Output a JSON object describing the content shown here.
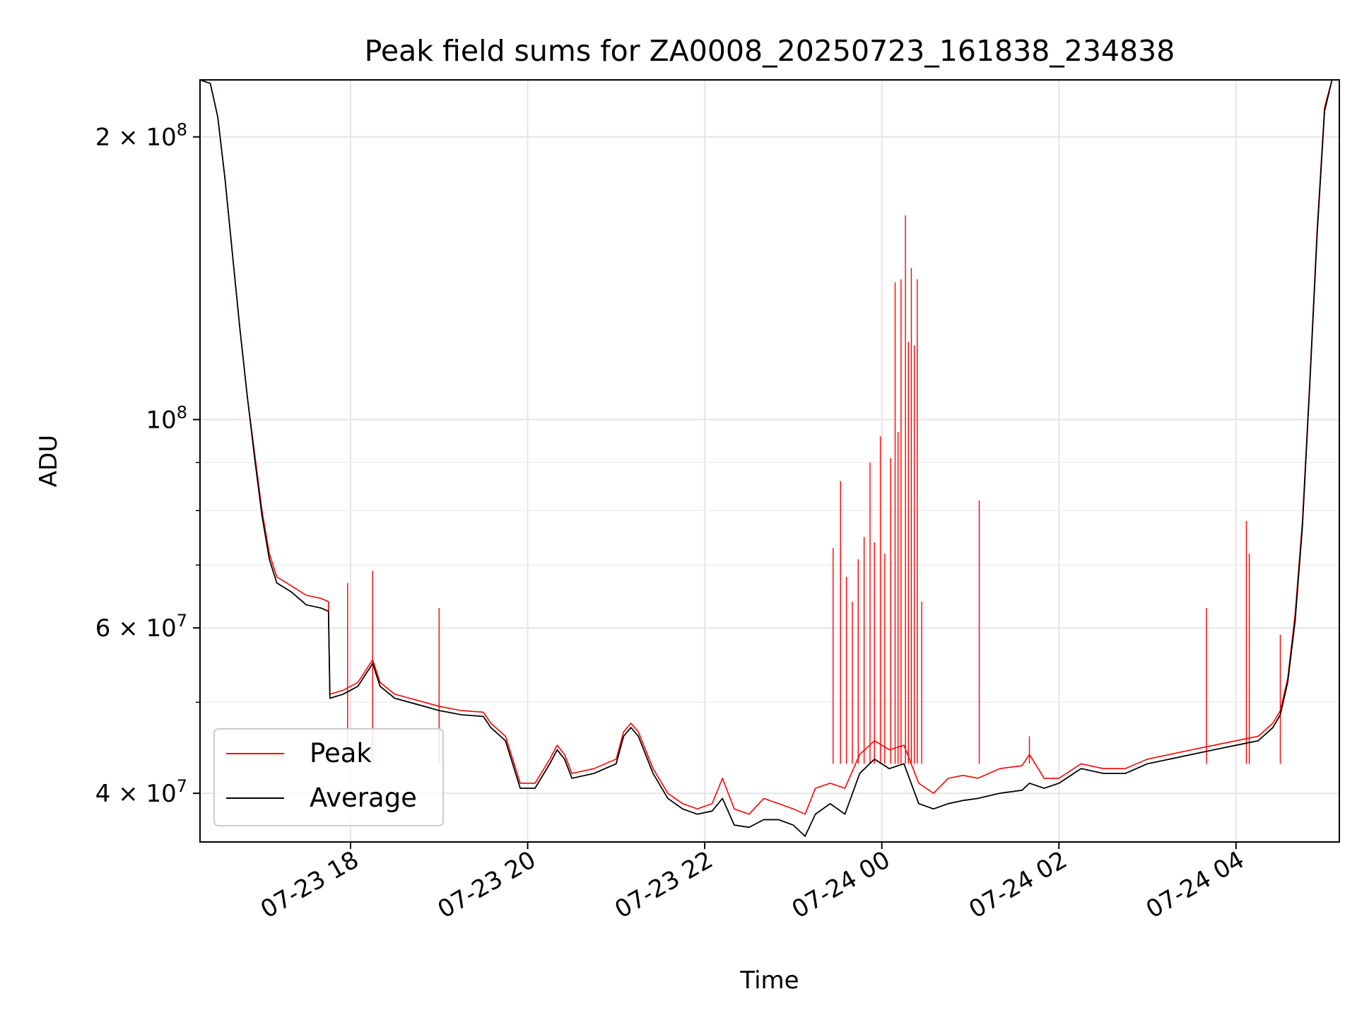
{
  "chart_data": {
    "type": "line",
    "title": "Peak field sums for ZA0008_20250723_161838_234838",
    "xlabel": "Time",
    "ylabel": "ADU",
    "y_scale": "log",
    "ylim": [
      35500000,
      230000000
    ],
    "xlim": [
      "2025-07-23 16:18",
      "2025-07-24 05:10"
    ],
    "grid": true,
    "legend": {
      "position": "lower left"
    },
    "x_ticks": [
      {
        "value": "2025-07-23 18:00",
        "label": "07-23 18"
      },
      {
        "value": "2025-07-23 20:00",
        "label": "07-23 20"
      },
      {
        "value": "2025-07-23 22:00",
        "label": "07-23 22"
      },
      {
        "value": "2025-07-24 00:00",
        "label": "07-24 00"
      },
      {
        "value": "2025-07-24 02:00",
        "label": "07-24 02"
      },
      {
        "value": "2025-07-24 04:00",
        "label": "07-24 04"
      }
    ],
    "y_ticks_major": [
      {
        "value": 40000000,
        "base": "4",
        "exp": "7"
      },
      {
        "value": 60000000,
        "base": "6",
        "exp": "7"
      },
      {
        "value": 100000000,
        "base": "",
        "exp": "8"
      },
      {
        "value": 200000000,
        "base": "2",
        "exp": "8"
      }
    ],
    "y_ticks_minor": [
      50000000,
      70000000,
      80000000,
      90000000
    ],
    "series": [
      {
        "name": "Peak",
        "color": "#ff0000",
        "points": [
          [
            "2025-07-23 16:18",
            230000000
          ],
          [
            "2025-07-23 16:25",
            228000000
          ],
          [
            "2025-07-23 16:30",
            210000000
          ],
          [
            "2025-07-23 16:35",
            180000000
          ],
          [
            "2025-07-23 16:40",
            150000000
          ],
          [
            "2025-07-23 16:45",
            125000000
          ],
          [
            "2025-07-23 16:50",
            106000000
          ],
          [
            "2025-07-23 16:55",
            92000000
          ],
          [
            "2025-07-23 17:00",
            80000000
          ],
          [
            "2025-07-23 17:05",
            72000000
          ],
          [
            "2025-07-23 17:10",
            68000000
          ],
          [
            "2025-07-23 17:20",
            66500000
          ],
          [
            "2025-07-23 17:30",
            65000000
          ],
          [
            "2025-07-23 17:40",
            64500000
          ],
          [
            "2025-07-23 17:45",
            64000000
          ],
          [
            "2025-07-23 17:46",
            51000000
          ],
          [
            "2025-07-23 17:55",
            51500000
          ],
          [
            "2025-07-23 18:05",
            52500000
          ],
          [
            "2025-07-23 18:10",
            54000000
          ],
          [
            "2025-07-23 18:15",
            55500000
          ],
          [
            "2025-07-23 18:20",
            52500000
          ],
          [
            "2025-07-23 18:30",
            51000000
          ],
          [
            "2025-07-23 18:50",
            50000000
          ],
          [
            "2025-07-23 19:00",
            49500000
          ],
          [
            "2025-07-23 19:15",
            49000000
          ],
          [
            "2025-07-23 19:30",
            48800000
          ],
          [
            "2025-07-23 19:35",
            47500000
          ],
          [
            "2025-07-23 19:45",
            46000000
          ],
          [
            "2025-07-23 19:55",
            41000000
          ],
          [
            "2025-07-23 20:05",
            41000000
          ],
          [
            "2025-07-23 20:15",
            43500000
          ],
          [
            "2025-07-23 20:20",
            45000000
          ],
          [
            "2025-07-23 20:25",
            44000000
          ],
          [
            "2025-07-23 20:30",
            42000000
          ],
          [
            "2025-07-23 20:45",
            42500000
          ],
          [
            "2025-07-23 21:00",
            43500000
          ],
          [
            "2025-07-23 21:05",
            46500000
          ],
          [
            "2025-07-23 21:10",
            47500000
          ],
          [
            "2025-07-23 21:15",
            46500000
          ],
          [
            "2025-07-23 21:25",
            42500000
          ],
          [
            "2025-07-23 21:35",
            40000000
          ],
          [
            "2025-07-23 21:45",
            39000000
          ],
          [
            "2025-07-23 21:55",
            38500000
          ],
          [
            "2025-07-23 22:05",
            39000000
          ],
          [
            "2025-07-23 22:12",
            41500000
          ],
          [
            "2025-07-23 22:20",
            38500000
          ],
          [
            "2025-07-23 22:30",
            38000000
          ],
          [
            "2025-07-23 22:40",
            39500000
          ],
          [
            "2025-07-23 22:50",
            39000000
          ],
          [
            "2025-07-23 23:00",
            38500000
          ],
          [
            "2025-07-23 23:08",
            38000000
          ],
          [
            "2025-07-23 23:15",
            40500000
          ],
          [
            "2025-07-23 23:25",
            41000000
          ],
          [
            "2025-07-23 23:35",
            40500000
          ],
          [
            "2025-07-23 23:45",
            44000000
          ],
          [
            "2025-07-23 23:55",
            45500000
          ],
          [
            "2025-07-24 00:05",
            44500000
          ],
          [
            "2025-07-24 00:15",
            45000000
          ],
          [
            "2025-07-24 00:25",
            41000000
          ],
          [
            "2025-07-24 00:35",
            40000000
          ],
          [
            "2025-07-24 00:45",
            41500000
          ],
          [
            "2025-07-24 00:55",
            41800000
          ],
          [
            "2025-07-24 01:05",
            41500000
          ],
          [
            "2025-07-24 01:20",
            42500000
          ],
          [
            "2025-07-24 01:35",
            42800000
          ],
          [
            "2025-07-24 01:40",
            44000000
          ],
          [
            "2025-07-24 01:50",
            41500000
          ],
          [
            "2025-07-24 02:00",
            41500000
          ],
          [
            "2025-07-24 02:15",
            43000000
          ],
          [
            "2025-07-24 02:30",
            42500000
          ],
          [
            "2025-07-24 02:45",
            42500000
          ],
          [
            "2025-07-24 03:00",
            43500000
          ],
          [
            "2025-07-24 03:15",
            44000000
          ],
          [
            "2025-07-24 03:30",
            44500000
          ],
          [
            "2025-07-24 03:45",
            45000000
          ],
          [
            "2025-07-24 04:00",
            45500000
          ],
          [
            "2025-07-24 04:15",
            46000000
          ],
          [
            "2025-07-24 04:25",
            47500000
          ],
          [
            "2025-07-24 04:30",
            49000000
          ],
          [
            "2025-07-24 04:35",
            53000000
          ],
          [
            "2025-07-24 04:40",
            62000000
          ],
          [
            "2025-07-24 04:45",
            78000000
          ],
          [
            "2025-07-24 04:50",
            110000000
          ],
          [
            "2025-07-24 04:55",
            160000000
          ],
          [
            "2025-07-24 05:00",
            215000000
          ],
          [
            "2025-07-24 05:05",
            230000000
          ],
          [
            "2025-07-24 05:10",
            230000000
          ]
        ]
      },
      {
        "name": "Average",
        "color": "#000000",
        "points": [
          [
            "2025-07-23 16:18",
            230000000
          ],
          [
            "2025-07-23 16:25",
            228000000
          ],
          [
            "2025-07-23 16:30",
            210000000
          ],
          [
            "2025-07-23 16:35",
            180000000
          ],
          [
            "2025-07-23 16:40",
            150000000
          ],
          [
            "2025-07-23 16:45",
            125000000
          ],
          [
            "2025-07-23 16:50",
            106000000
          ],
          [
            "2025-07-23 16:55",
            91000000
          ],
          [
            "2025-07-23 17:00",
            79000000
          ],
          [
            "2025-07-23 17:05",
            71000000
          ],
          [
            "2025-07-23 17:10",
            67000000
          ],
          [
            "2025-07-23 17:20",
            65500000
          ],
          [
            "2025-07-23 17:30",
            63500000
          ],
          [
            "2025-07-23 17:40",
            63000000
          ],
          [
            "2025-07-23 17:45",
            62500000
          ],
          [
            "2025-07-23 17:46",
            50500000
          ],
          [
            "2025-07-23 17:55",
            51000000
          ],
          [
            "2025-07-23 18:05",
            52000000
          ],
          [
            "2025-07-23 18:10",
            53500000
          ],
          [
            "2025-07-23 18:15",
            55000000
          ],
          [
            "2025-07-23 18:20",
            52000000
          ],
          [
            "2025-07-23 18:30",
            50500000
          ],
          [
            "2025-07-23 18:50",
            49500000
          ],
          [
            "2025-07-23 19:00",
            49000000
          ],
          [
            "2025-07-23 19:15",
            48500000
          ],
          [
            "2025-07-23 19:30",
            48300000
          ],
          [
            "2025-07-23 19:35",
            47000000
          ],
          [
            "2025-07-23 19:45",
            45500000
          ],
          [
            "2025-07-23 19:55",
            40500000
          ],
          [
            "2025-07-23 20:05",
            40500000
          ],
          [
            "2025-07-23 20:15",
            43000000
          ],
          [
            "2025-07-23 20:20",
            44500000
          ],
          [
            "2025-07-23 20:25",
            43500000
          ],
          [
            "2025-07-23 20:30",
            41500000
          ],
          [
            "2025-07-23 20:45",
            42000000
          ],
          [
            "2025-07-23 21:00",
            43000000
          ],
          [
            "2025-07-23 21:05",
            46000000
          ],
          [
            "2025-07-23 21:10",
            47000000
          ],
          [
            "2025-07-23 21:15",
            46000000
          ],
          [
            "2025-07-23 21:25",
            42000000
          ],
          [
            "2025-07-23 21:35",
            39500000
          ],
          [
            "2025-07-23 21:45",
            38500000
          ],
          [
            "2025-07-23 21:55",
            38000000
          ],
          [
            "2025-07-23 22:05",
            38300000
          ],
          [
            "2025-07-23 22:12",
            39500000
          ],
          [
            "2025-07-23 22:20",
            37000000
          ],
          [
            "2025-07-23 22:30",
            36800000
          ],
          [
            "2025-07-23 22:40",
            37500000
          ],
          [
            "2025-07-23 22:50",
            37500000
          ],
          [
            "2025-07-23 23:00",
            37000000
          ],
          [
            "2025-07-23 23:08",
            36000000
          ],
          [
            "2025-07-23 23:15",
            38000000
          ],
          [
            "2025-07-23 23:25",
            39000000
          ],
          [
            "2025-07-23 23:35",
            38000000
          ],
          [
            "2025-07-23 23:45",
            42000000
          ],
          [
            "2025-07-23 23:55",
            43500000
          ],
          [
            "2025-07-24 00:05",
            42500000
          ],
          [
            "2025-07-24 00:15",
            43000000
          ],
          [
            "2025-07-24 00:25",
            39000000
          ],
          [
            "2025-07-24 00:35",
            38500000
          ],
          [
            "2025-07-24 00:45",
            39000000
          ],
          [
            "2025-07-24 00:55",
            39300000
          ],
          [
            "2025-07-24 01:05",
            39500000
          ],
          [
            "2025-07-24 01:20",
            40000000
          ],
          [
            "2025-07-24 01:35",
            40300000
          ],
          [
            "2025-07-24 01:40",
            41000000
          ],
          [
            "2025-07-24 01:50",
            40500000
          ],
          [
            "2025-07-24 02:00",
            41000000
          ],
          [
            "2025-07-24 02:15",
            42500000
          ],
          [
            "2025-07-24 02:30",
            42000000
          ],
          [
            "2025-07-24 02:45",
            42000000
          ],
          [
            "2025-07-24 03:00",
            43000000
          ],
          [
            "2025-07-24 03:15",
            43500000
          ],
          [
            "2025-07-24 03:30",
            44000000
          ],
          [
            "2025-07-24 03:45",
            44500000
          ],
          [
            "2025-07-24 04:00",
            45000000
          ],
          [
            "2025-07-24 04:15",
            45500000
          ],
          [
            "2025-07-24 04:25",
            47000000
          ],
          [
            "2025-07-24 04:30",
            48500000
          ],
          [
            "2025-07-24 04:35",
            52500000
          ],
          [
            "2025-07-24 04:40",
            61000000
          ],
          [
            "2025-07-24 04:45",
            77000000
          ],
          [
            "2025-07-24 04:50",
            109000000
          ],
          [
            "2025-07-24 04:55",
            158000000
          ],
          [
            "2025-07-24 05:00",
            213000000
          ],
          [
            "2025-07-24 05:05",
            230000000
          ],
          [
            "2025-07-24 05:10",
            230000000
          ]
        ]
      }
    ],
    "peak_spikes": [
      [
        "2025-07-23 17:58",
        67000000
      ],
      [
        "2025-07-23 18:15",
        69000000
      ],
      [
        "2025-07-23 19:00",
        63000000
      ],
      [
        "2025-07-23 23:27",
        73000000
      ],
      [
        "2025-07-23 23:32",
        86000000
      ],
      [
        "2025-07-23 23:36",
        68000000
      ],
      [
        "2025-07-23 23:40",
        64000000
      ],
      [
        "2025-07-23 23:44",
        71000000
      ],
      [
        "2025-07-23 23:48",
        75000000
      ],
      [
        "2025-07-23 23:52",
        90000000
      ],
      [
        "2025-07-23 23:55",
        74000000
      ],
      [
        "2025-07-23 23:59",
        96000000
      ],
      [
        "2025-07-24 00:02",
        72000000
      ],
      [
        "2025-07-24 00:06",
        91000000
      ],
      [
        "2025-07-24 00:09",
        140000000
      ],
      [
        "2025-07-24 00:11",
        97000000
      ],
      [
        "2025-07-24 00:13",
        141000000
      ],
      [
        "2025-07-24 00:16",
        165000000
      ],
      [
        "2025-07-24 00:18",
        121000000
      ],
      [
        "2025-07-24 00:20",
        145000000
      ],
      [
        "2025-07-24 00:22",
        120000000
      ],
      [
        "2025-07-24 00:24",
        141000000
      ],
      [
        "2025-07-24 00:27",
        64000000
      ],
      [
        "2025-07-24 01:06",
        82000000
      ],
      [
        "2025-07-24 01:40",
        46000000
      ],
      [
        "2025-07-24 03:40",
        63000000
      ],
      [
        "2025-07-24 04:07",
        78000000
      ],
      [
        "2025-07-24 04:09",
        72000000
      ],
      [
        "2025-07-24 04:30",
        59000000
      ]
    ]
  }
}
